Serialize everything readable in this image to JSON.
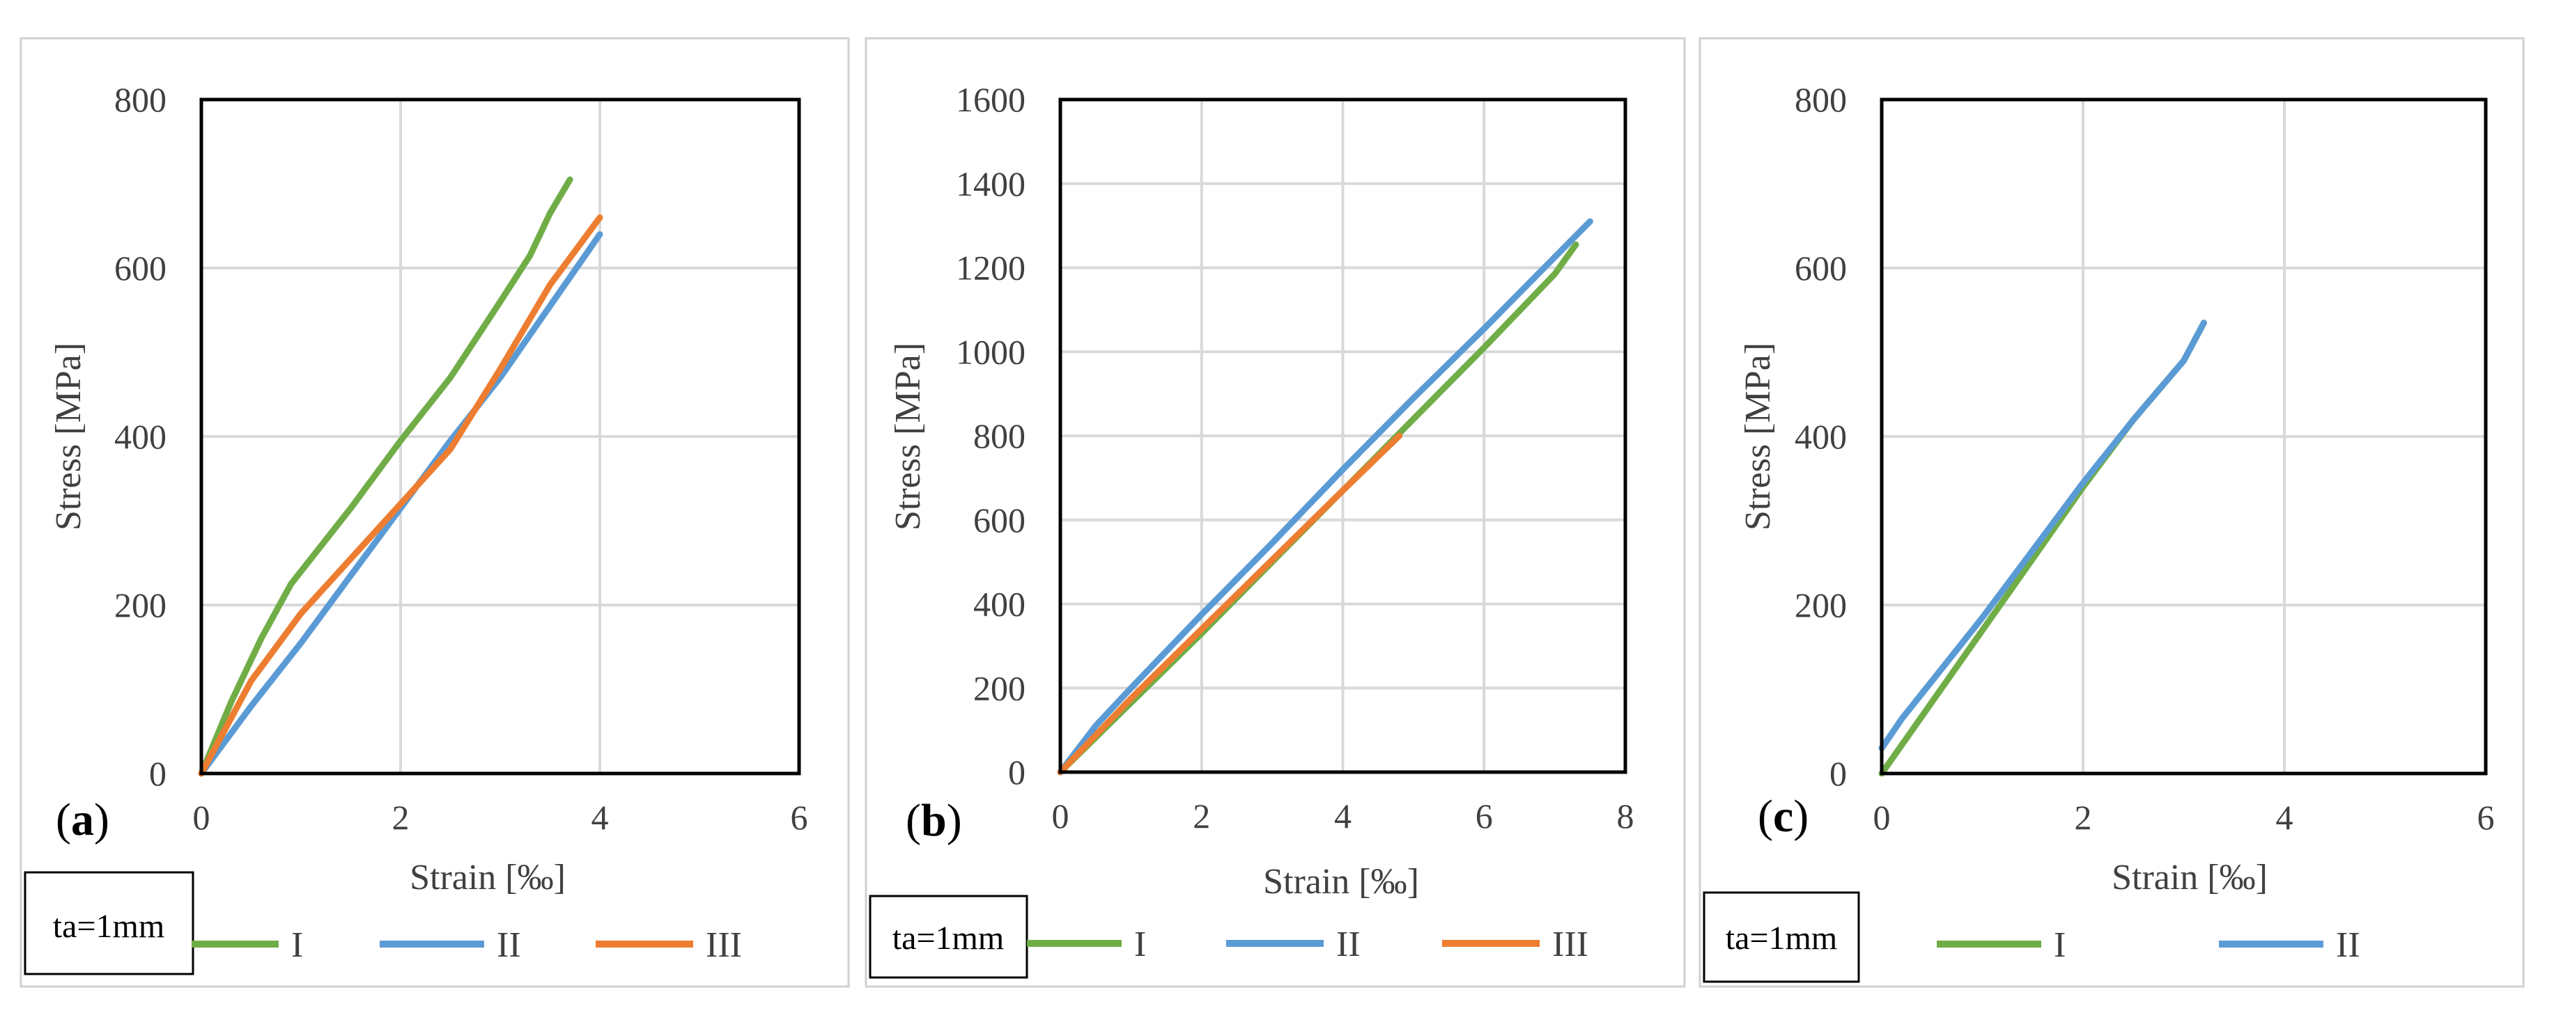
{
  "chart_data": [
    {
      "type": "line",
      "panel_label": "a",
      "xlabel": "Strain [‰]",
      "ylabel": "Stress [MPa]",
      "xlim": [
        0,
        6
      ],
      "ylim": [
        0,
        800
      ],
      "xticks": [
        0,
        2,
        4,
        6
      ],
      "yticks": [
        0,
        200,
        400,
        600,
        800
      ],
      "grid": true,
      "legend_box_text": "ta=1mm",
      "series": [
        {
          "name": "I",
          "color": "#70ad47",
          "x": [
            0,
            0.3,
            0.6,
            0.9,
            1.5,
            2.0,
            2.5,
            3.0,
            3.3,
            3.5,
            3.7
          ],
          "y": [
            0,
            85,
            160,
            225,
            315,
            395,
            470,
            560,
            615,
            665,
            705
          ]
        },
        {
          "name": "II",
          "color": "#5b9bd5",
          "x": [
            0,
            0.5,
            1.0,
            1.5,
            2.0,
            2.5,
            3.0,
            3.5,
            4.0
          ],
          "y": [
            0,
            80,
            155,
            235,
            315,
            395,
            470,
            555,
            640
          ]
        },
        {
          "name": "III",
          "color": "#ed7d31",
          "x": [
            0,
            0.5,
            1.0,
            1.5,
            2.0,
            2.5,
            3.0,
            3.5,
            4.0
          ],
          "y": [
            0,
            110,
            190,
            255,
            320,
            385,
            480,
            580,
            660
          ]
        }
      ]
    },
    {
      "type": "line",
      "panel_label": "b",
      "xlabel": "Strain [‰]",
      "ylabel": "Stress [MPa]",
      "xlim": [
        0,
        8
      ],
      "ylim": [
        0,
        1600
      ],
      "xticks": [
        0,
        2,
        4,
        6,
        8
      ],
      "yticks": [
        0,
        200,
        400,
        600,
        800,
        1000,
        1200,
        1400,
        1600
      ],
      "grid": true,
      "legend_box_text": "ta=1mm",
      "series": [
        {
          "name": "I",
          "color": "#70ad47",
          "x": [
            0,
            1,
            2,
            3,
            4,
            5,
            6,
            7,
            7.3
          ],
          "y": [
            0,
            165,
            330,
            500,
            670,
            840,
            1010,
            1185,
            1255
          ]
        },
        {
          "name": "II",
          "color": "#5b9bd5",
          "x": [
            0,
            0.5,
            1,
            2,
            3,
            4,
            5,
            6,
            7,
            7.5
          ],
          "y": [
            0,
            110,
            200,
            375,
            545,
            720,
            890,
            1055,
            1225,
            1310
          ]
        },
        {
          "name": "III",
          "color": "#ed7d31",
          "x": [
            0,
            1,
            2,
            3,
            4,
            4.8
          ],
          "y": [
            0,
            175,
            340,
            505,
            670,
            800
          ]
        }
      ]
    },
    {
      "type": "line",
      "panel_label": "c",
      "xlabel": "Strain [‰]",
      "ylabel": "Stress [MPa]",
      "xlim": [
        0,
        6
      ],
      "ylim": [
        0,
        800
      ],
      "xticks": [
        0,
        2,
        4,
        6
      ],
      "yticks": [
        0,
        200,
        400,
        600,
        800
      ],
      "grid": true,
      "legend_box_text": "ta=1mm",
      "series": [
        {
          "name": "I",
          "color": "#70ad47",
          "x": [
            0,
            0.5,
            1.0,
            1.5,
            2.0,
            2.5,
            3.0,
            3.2
          ],
          "y": [
            0,
            85,
            170,
            255,
            340,
            420,
            490,
            535
          ]
        },
        {
          "name": "II",
          "color": "#5b9bd5",
          "x": [
            0,
            0.2,
            0.5,
            1.0,
            1.5,
            2.0,
            2.5,
            3.0,
            3.2
          ],
          "y": [
            30,
            65,
            110,
            185,
            265,
            345,
            420,
            490,
            535
          ]
        }
      ]
    }
  ]
}
